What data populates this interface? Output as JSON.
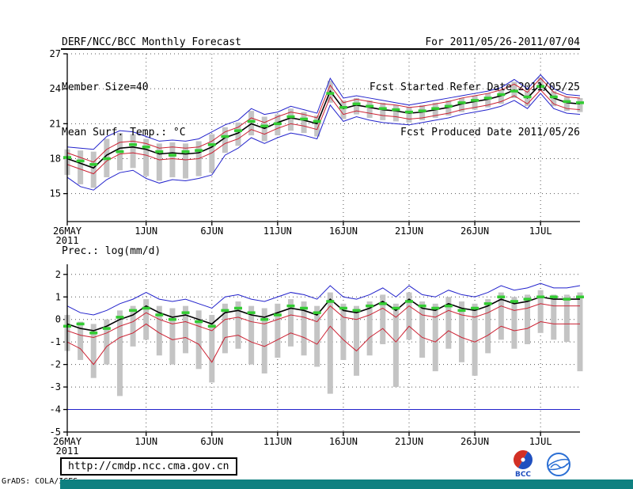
{
  "header": {
    "title": "DERF/NCC/BCC Monthly Forecast",
    "member_size": "Member Size=40",
    "for_range": "For 2011/05/26-2011/07/04",
    "fcst_started": "Fcst Started Refer Date 2011/05/25",
    "fcst_produced": "Fcst Produced Date 2011/05/26"
  },
  "footer": {
    "url": "http://cmdp.ncc.cma.gov.cn",
    "grads_credit": "GrADS: COLA/IGES",
    "bcc_label": "BCC"
  },
  "colors": {
    "envelope_blue": "#2222cc",
    "quartile_red": "#cc2233",
    "mean_black": "#000000",
    "obs_green": "#33cc33",
    "spread_gray": "#c4c4c4",
    "footer_bar_teal": "#0e8080"
  },
  "icons": {
    "bcc_logo": "bcc-logo-icon",
    "cma_logo": "cma-logo-icon"
  },
  "chart_data": [
    {
      "name": "surface-temperature",
      "type": "line",
      "title": "Mean Surf. Temp.: °C",
      "ylim": [
        12.6,
        27
      ],
      "yticks": [
        15,
        18,
        21,
        24,
        27
      ],
      "x": [
        "26MAY",
        "27MAY",
        "28MAY",
        "29MAY",
        "30MAY",
        "31MAY",
        "1JUN",
        "2JUN",
        "3JUN",
        "4JUN",
        "5JUN",
        "6JUN",
        "7JUN",
        "8JUN",
        "9JUN",
        "10JUN",
        "11JUN",
        "12JUN",
        "13JUN",
        "14JUN",
        "15JUN",
        "16JUN",
        "17JUN",
        "18JUN",
        "19JUN",
        "20JUN",
        "21JUN",
        "22JUN",
        "23JUN",
        "24JUN",
        "25JUN",
        "26JUN",
        "27JUN",
        "28JUN",
        "29JUN",
        "30JUN",
        "1JUL",
        "2JUL",
        "3JUL",
        "4JUL"
      ],
      "xticks": [
        {
          "i": 0,
          "label": "26MAY",
          "sub": "2011"
        },
        {
          "i": 6,
          "label": "1JUN"
        },
        {
          "i": 11,
          "label": "6JUN"
        },
        {
          "i": 16,
          "label": "11JUN"
        },
        {
          "i": 21,
          "label": "16JUN"
        },
        {
          "i": 26,
          "label": "21JUN"
        },
        {
          "i": 31,
          "label": "26JUN"
        },
        {
          "i": 36,
          "label": "1JUL"
        }
      ],
      "series": [
        {
          "name": "member-spread",
          "style": "bar",
          "color": "#c4c4c4",
          "low": [
            16.6,
            15.8,
            15.5,
            16.4,
            17.0,
            17.2,
            16.5,
            16.1,
            16.4,
            16.3,
            16.5,
            16.8,
            18.5,
            19.1,
            20.0,
            19.5,
            20.0,
            20.4,
            20.2,
            19.9,
            22.8,
            21.4,
            21.8,
            21.5,
            21.3,
            21.2,
            21.1,
            21.3,
            21.5,
            21.7,
            22.0,
            22.2,
            22.4,
            22.7,
            23.2,
            22.5,
            23.8,
            22.5,
            22.1,
            22.0
          ],
          "high": [
            18.8,
            18.7,
            18.6,
            19.7,
            20.2,
            20.1,
            19.7,
            19.3,
            19.4,
            19.3,
            19.5,
            20.1,
            20.7,
            21.1,
            22.1,
            21.6,
            21.8,
            22.3,
            22.0,
            21.7,
            24.7,
            23.0,
            23.2,
            23.0,
            22.8,
            22.6,
            22.4,
            22.6,
            22.8,
            23.0,
            23.2,
            23.4,
            23.6,
            23.9,
            24.6,
            23.8,
            25.0,
            23.8,
            23.3,
            23.2
          ]
        },
        {
          "name": "member-max",
          "style": "line",
          "color": "#2222cc",
          "width": 1,
          "values": [
            19.0,
            18.9,
            18.8,
            19.9,
            20.4,
            20.3,
            19.9,
            19.5,
            19.6,
            19.5,
            19.7,
            20.3,
            20.9,
            21.3,
            22.3,
            21.8,
            22.0,
            22.5,
            22.2,
            21.9,
            24.9,
            23.2,
            23.4,
            23.2,
            23.0,
            22.8,
            22.6,
            22.8,
            23.0,
            23.2,
            23.4,
            23.6,
            23.8,
            24.1,
            24.8,
            24.0,
            25.2,
            24.0,
            23.5,
            23.4
          ]
        },
        {
          "name": "member-min",
          "style": "line",
          "color": "#2222cc",
          "width": 1,
          "values": [
            16.4,
            15.6,
            15.3,
            16.2,
            16.8,
            17.0,
            16.3,
            15.9,
            16.2,
            16.1,
            16.3,
            16.6,
            18.3,
            18.9,
            19.8,
            19.3,
            19.8,
            20.2,
            20.0,
            19.7,
            22.6,
            21.2,
            21.6,
            21.3,
            21.1,
            21.0,
            20.9,
            21.1,
            21.3,
            21.5,
            21.8,
            22.0,
            22.2,
            22.5,
            23.0,
            22.3,
            23.6,
            22.3,
            21.9,
            21.8
          ]
        },
        {
          "name": "upper-quartile",
          "style": "line",
          "color": "#cc2233",
          "width": 1,
          "values": [
            18.5,
            18.1,
            17.7,
            18.8,
            19.4,
            19.5,
            19.3,
            18.9,
            19.0,
            18.9,
            19.0,
            19.5,
            20.3,
            20.7,
            21.5,
            21.1,
            21.6,
            22.0,
            21.8,
            21.5,
            24.3,
            22.8,
            23.1,
            22.9,
            22.7,
            22.6,
            22.4,
            22.5,
            22.7,
            22.9,
            23.2,
            23.4,
            23.6,
            23.9,
            24.4,
            23.7,
            24.9,
            23.7,
            23.3,
            23.2
          ]
        },
        {
          "name": "lower-quartile",
          "style": "line",
          "color": "#cc2233",
          "width": 1,
          "values": [
            17.5,
            17.1,
            16.7,
            17.8,
            18.4,
            18.5,
            18.3,
            17.9,
            18.0,
            17.9,
            18.0,
            18.5,
            19.3,
            19.7,
            20.5,
            20.1,
            20.6,
            21.0,
            20.8,
            20.5,
            23.3,
            21.8,
            22.1,
            21.9,
            21.7,
            21.6,
            21.4,
            21.5,
            21.7,
            21.9,
            22.2,
            22.4,
            22.6,
            22.9,
            23.4,
            22.7,
            23.9,
            22.7,
            22.3,
            22.2
          ]
        },
        {
          "name": "ensemble-mean",
          "style": "line",
          "color": "#000000",
          "width": 1.6,
          "values": [
            18.0,
            17.6,
            17.2,
            18.3,
            18.9,
            19.0,
            18.8,
            18.4,
            18.5,
            18.4,
            18.5,
            19.0,
            19.8,
            20.2,
            21.0,
            20.6,
            21.1,
            21.5,
            21.3,
            21.0,
            23.8,
            22.3,
            22.6,
            22.4,
            22.2,
            22.1,
            21.9,
            22.0,
            22.2,
            22.4,
            22.7,
            22.9,
            23.1,
            23.4,
            23.9,
            23.2,
            24.4,
            23.2,
            22.8,
            22.7
          ]
        },
        {
          "name": "climatology-obs",
          "style": "marks",
          "color": "#33cc33",
          "values": [
            18.1,
            17.8,
            17.5,
            18.0,
            18.6,
            19.2,
            19.0,
            18.6,
            18.3,
            18.6,
            18.7,
            19.2,
            19.9,
            20.4,
            21.2,
            20.8,
            21.0,
            21.6,
            21.4,
            21.2,
            23.6,
            22.4,
            22.7,
            22.5,
            22.3,
            22.2,
            22.0,
            22.1,
            22.3,
            22.5,
            22.8,
            23.0,
            23.2,
            23.5,
            23.8,
            23.3,
            24.2,
            23.3,
            22.9,
            22.8
          ]
        }
      ]
    },
    {
      "name": "precipitation",
      "type": "line",
      "title": "Prec.: log(mm/d)",
      "ylim": [
        -5,
        2.45
      ],
      "yticks": [
        2,
        1,
        0,
        -1,
        -2,
        -3,
        -4,
        -5
      ],
      "x": [
        "26MAY",
        "27MAY",
        "28MAY",
        "29MAY",
        "30MAY",
        "31MAY",
        "1JUN",
        "2JUN",
        "3JUN",
        "4JUN",
        "5JUN",
        "6JUN",
        "7JUN",
        "8JUN",
        "9JUN",
        "10JUN",
        "11JUN",
        "12JUN",
        "13JUN",
        "14JUN",
        "15JUN",
        "16JUN",
        "17JUN",
        "18JUN",
        "19JUN",
        "20JUN",
        "21JUN",
        "22JUN",
        "23JUN",
        "24JUN",
        "25JUN",
        "26JUN",
        "27JUN",
        "28JUN",
        "29JUN",
        "30JUN",
        "1JUL",
        "2JUL",
        "3JUL",
        "4JUL"
      ],
      "xticks": [
        {
          "i": 0,
          "label": "26MAY",
          "sub": "2011"
        },
        {
          "i": 6,
          "label": "1JUN"
        },
        {
          "i": 11,
          "label": "6JUN"
        },
        {
          "i": 16,
          "label": "11JUN"
        },
        {
          "i": 21,
          "label": "16JUN"
        },
        {
          "i": 26,
          "label": "21JUN"
        },
        {
          "i": 31,
          "label": "26JUN"
        },
        {
          "i": 36,
          "label": "1JUL"
        }
      ],
      "series": [
        {
          "name": "member-spread",
          "style": "bar",
          "color": "#c4c4c4",
          "low": [
            -1.4,
            -1.8,
            -2.6,
            -2.0,
            -3.4,
            -1.2,
            -0.9,
            -1.6,
            -2.0,
            -1.5,
            -2.2,
            -2.8,
            -1.5,
            -1.3,
            -2.0,
            -2.4,
            -1.7,
            -1.2,
            -1.6,
            -2.1,
            -3.3,
            -1.8,
            -2.5,
            -1.6,
            -1.1,
            -3.0,
            -0.9,
            -1.7,
            -2.3,
            -1.3,
            -1.9,
            -2.5,
            -1.5,
            -0.9,
            -1.3,
            -1.1,
            -0.6,
            -0.9,
            -1.0,
            -2.3
          ],
          "high": [
            0.2,
            -0.1,
            -0.2,
            0.0,
            0.4,
            0.6,
            0.9,
            0.6,
            0.5,
            0.6,
            0.4,
            0.2,
            0.7,
            0.8,
            0.6,
            0.5,
            0.7,
            0.9,
            0.8,
            0.6,
            1.2,
            0.7,
            0.6,
            0.8,
            1.1,
            0.7,
            1.2,
            0.8,
            0.7,
            1.0,
            0.8,
            0.7,
            0.9,
            1.2,
            1.0,
            1.1,
            1.3,
            1.1,
            1.1,
            1.2
          ]
        },
        {
          "name": "member-max",
          "style": "line",
          "color": "#2222cc",
          "width": 1,
          "values": [
            0.6,
            0.3,
            0.2,
            0.4,
            0.7,
            0.9,
            1.2,
            0.9,
            0.8,
            0.9,
            0.7,
            0.5,
            1.0,
            1.1,
            0.9,
            0.8,
            1.0,
            1.2,
            1.1,
            0.9,
            1.5,
            1.0,
            0.9,
            1.1,
            1.4,
            1.0,
            1.5,
            1.1,
            1.0,
            1.3,
            1.1,
            1.0,
            1.2,
            1.5,
            1.3,
            1.4,
            1.6,
            1.4,
            1.4,
            1.5
          ]
        },
        {
          "name": "member-min",
          "style": "line",
          "color": "#2222cc",
          "width": 1,
          "values": [
            -4,
            -4,
            -4,
            -4,
            -4,
            -4,
            -4,
            -4,
            -4,
            -4,
            -4,
            -4,
            -4,
            -4,
            -4,
            -4,
            -4,
            -4,
            -4,
            -4,
            -4,
            -4,
            -4,
            -4,
            -4,
            -4,
            -4,
            -4,
            -4,
            -4,
            -4,
            -4,
            -4,
            -4,
            -4,
            -4,
            -4,
            -4,
            -4,
            -4
          ]
        },
        {
          "name": "upper-quartile",
          "style": "line",
          "color": "#cc2233",
          "width": 1,
          "values": [
            -0.5,
            -0.7,
            -0.8,
            -0.6,
            -0.3,
            -0.1,
            0.3,
            0.0,
            -0.2,
            -0.1,
            -0.3,
            -0.5,
            0.0,
            0.1,
            -0.1,
            -0.2,
            0.0,
            0.2,
            0.1,
            -0.1,
            0.6,
            0.1,
            0.0,
            0.2,
            0.5,
            0.1,
            0.6,
            0.2,
            0.1,
            0.4,
            0.2,
            0.1,
            0.3,
            0.6,
            0.4,
            0.5,
            0.7,
            0.6,
            0.6,
            0.6
          ]
        },
        {
          "name": "lower-quartile",
          "style": "line",
          "color": "#cc2233",
          "width": 1,
          "values": [
            -1.0,
            -1.3,
            -2.0,
            -1.2,
            -0.8,
            -0.6,
            -0.2,
            -0.6,
            -0.9,
            -0.8,
            -1.1,
            -1.9,
            -0.8,
            -0.7,
            -1.0,
            -1.2,
            -0.9,
            -0.6,
            -0.8,
            -1.1,
            -0.3,
            -0.9,
            -1.4,
            -0.8,
            -0.4,
            -1.0,
            -0.3,
            -0.8,
            -1.0,
            -0.5,
            -0.8,
            -1.0,
            -0.7,
            -0.3,
            -0.5,
            -0.4,
            -0.1,
            -0.2,
            -0.2,
            -0.2
          ]
        },
        {
          "name": "ensemble-mean",
          "style": "line",
          "color": "#000000",
          "width": 1.6,
          "values": [
            -0.2,
            -0.4,
            -0.5,
            -0.3,
            0.0,
            0.2,
            0.6,
            0.3,
            0.1,
            0.2,
            0.0,
            -0.2,
            0.3,
            0.4,
            0.2,
            0.1,
            0.3,
            0.5,
            0.4,
            0.2,
            0.9,
            0.4,
            0.3,
            0.5,
            0.8,
            0.4,
            0.9,
            0.5,
            0.4,
            0.7,
            0.5,
            0.4,
            0.6,
            0.9,
            0.7,
            0.8,
            1.0,
            0.9,
            0.9,
            0.9
          ]
        },
        {
          "name": "climatology-obs",
          "style": "marks",
          "color": "#33cc33",
          "values": [
            -0.3,
            -0.2,
            -0.6,
            -0.4,
            0.1,
            0.4,
            0.5,
            0.2,
            0.0,
            0.3,
            -0.1,
            -0.3,
            0.4,
            0.5,
            0.3,
            0.0,
            0.2,
            0.6,
            0.5,
            0.3,
            0.8,
            0.5,
            0.4,
            0.6,
            0.7,
            0.5,
            0.8,
            0.6,
            0.5,
            0.6,
            0.4,
            0.5,
            0.7,
            1.0,
            0.8,
            0.9,
            1.0,
            1.0,
            0.9,
            1.0
          ]
        }
      ]
    }
  ]
}
